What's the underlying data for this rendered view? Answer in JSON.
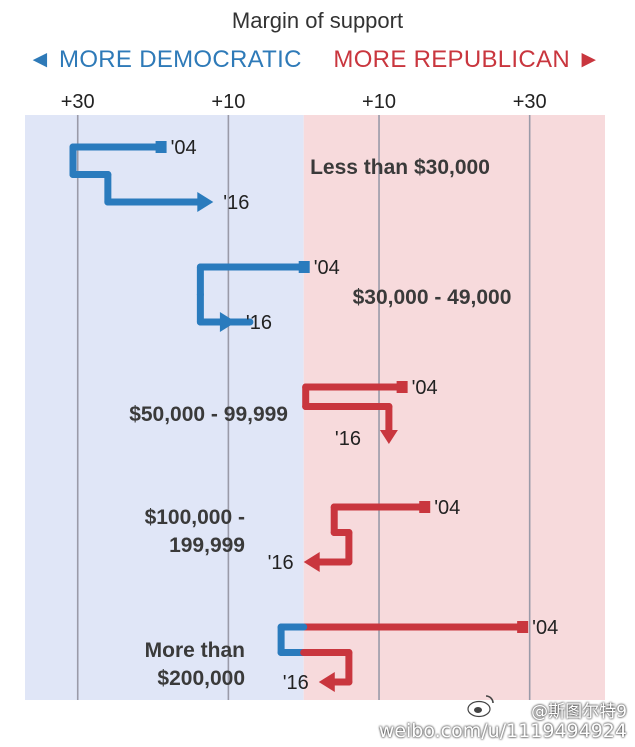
{
  "chart_data": {
    "type": "slope",
    "title": "Margin of support",
    "direction_labels": {
      "left": "◄ MORE DEMOCRATIC",
      "right": "MORE REPUBLICAN ►"
    },
    "x_ticks": [
      {
        "value": -30,
        "label": "+30"
      },
      {
        "value": -10,
        "label": "+10"
      },
      {
        "value": 10,
        "label": "+10"
      },
      {
        "value": 30,
        "label": "+30"
      }
    ],
    "xlim": [
      -37,
      40
    ],
    "year_labels": [
      "'04",
      "'16"
    ],
    "series": [
      {
        "name": "Less than $30,000",
        "v2004": -19,
        "v2016": -12,
        "label_lines": [
          "Less than $30,000"
        ],
        "label_align": "right"
      },
      {
        "name": "$30,000 - 49,000",
        "v2004": 0,
        "v2016": -9,
        "label_lines": [
          "$30,000 - 49,000"
        ],
        "label_align": "right"
      },
      {
        "name": "$50,000 - 99,999",
        "v2004": 13,
        "v2016": 6,
        "label_lines": [
          "$50,000 - 99,999"
        ],
        "label_align": "left"
      },
      {
        "name": "$100,000 - 199,999",
        "v2004": 16,
        "v2016": 0,
        "label_lines": [
          "$100,000 -",
          "199,999"
        ],
        "label_align": "left"
      },
      {
        "name": "More than $200,000",
        "v2004": 29,
        "v2016": 2,
        "label_lines": [
          "More than",
          "$200,000"
        ],
        "label_align": "left"
      }
    ],
    "colors": {
      "democratic_bg": "#e0e6f7",
      "republican_bg": "#f7dadc",
      "democratic": "#2a7bbd",
      "republican": "#c9363e",
      "gridline": "#9a9aa8"
    }
  },
  "watermark": {
    "handle": "@斯图尔特9",
    "url": "weibo.com/u/1119494924"
  }
}
